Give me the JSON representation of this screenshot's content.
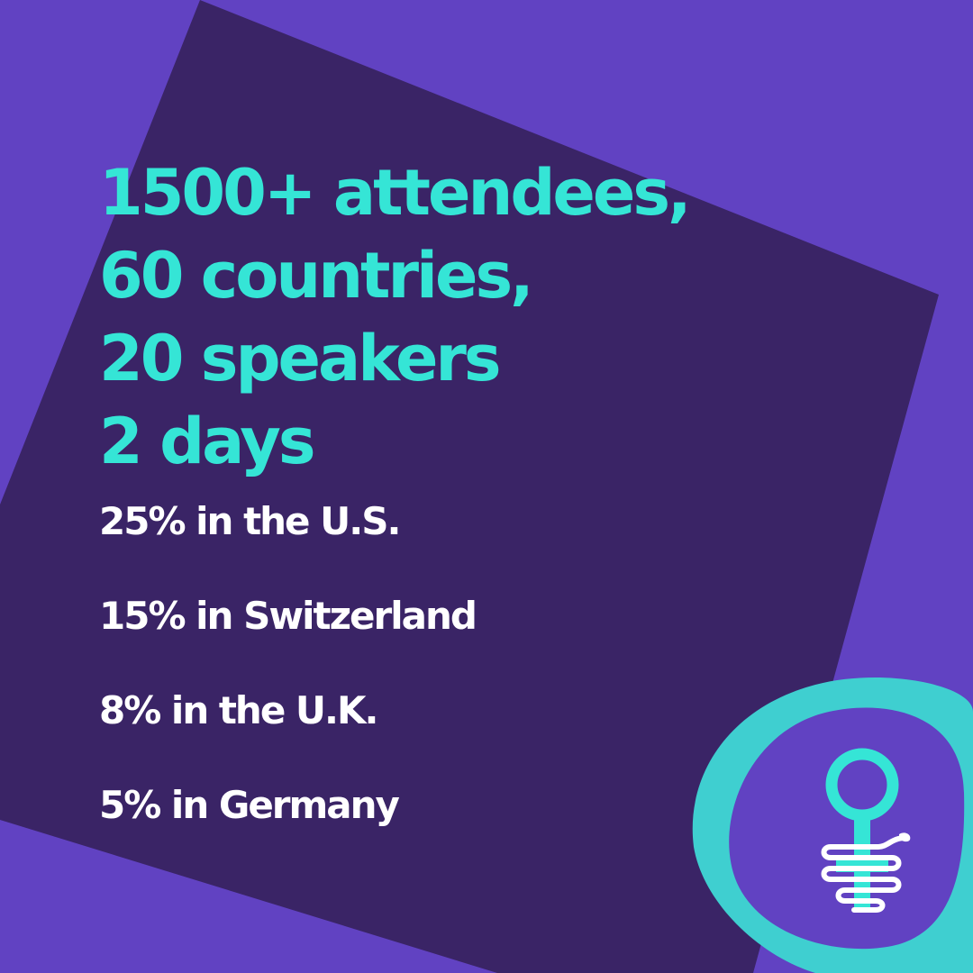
{
  "headline": {
    "lines": [
      "1500+ attendees,",
      "60 countries,",
      "20 speakers",
      "2 days"
    ]
  },
  "stats": [
    "25% in the U.S.",
    "15% in Switzerland",
    "8% in the U.K.",
    "5% in Germany"
  ],
  "colors": {
    "background": "#6142C2",
    "panel": "#3A2466",
    "accent": "#35E5D6",
    "text": "#FFFFFF"
  },
  "logo": {
    "icon": "venus-symbol-with-snake-icon"
  }
}
